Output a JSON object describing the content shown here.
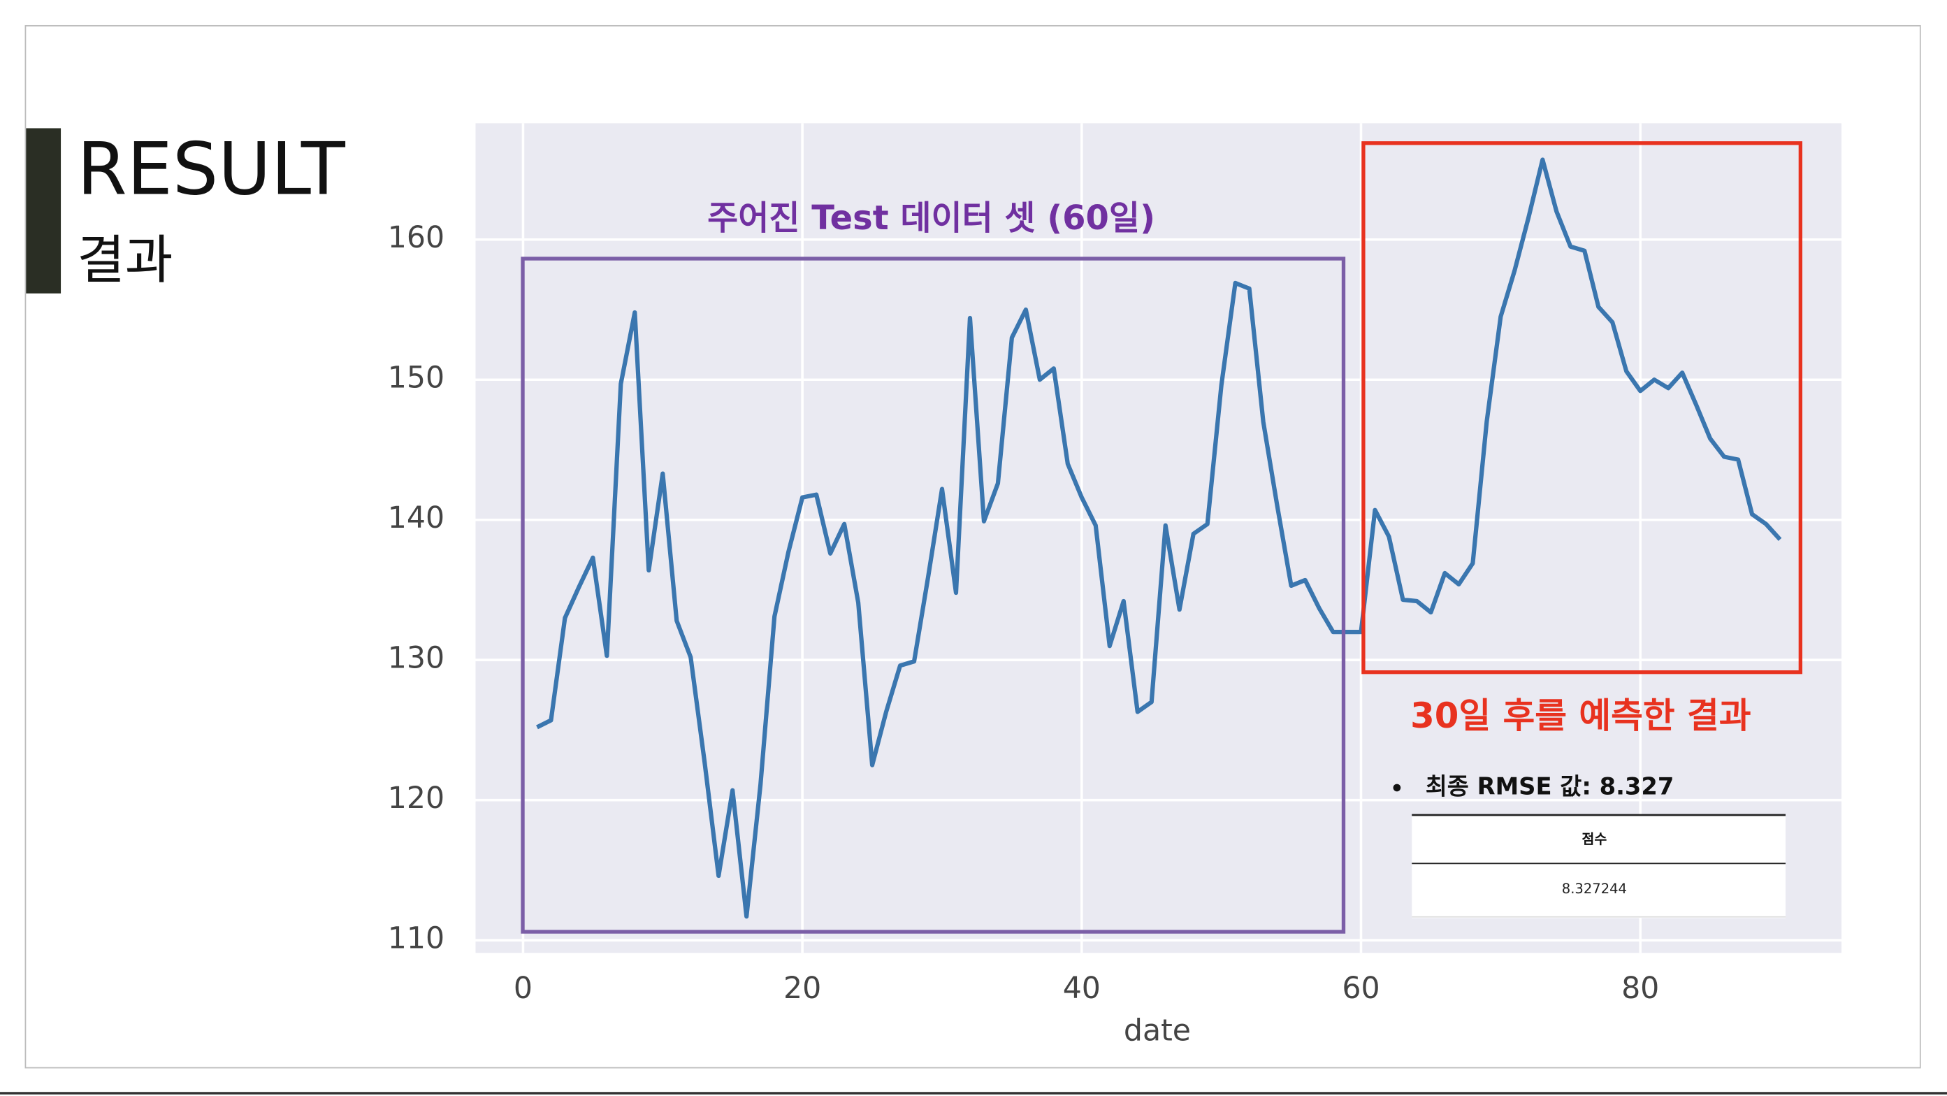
{
  "slide": {
    "title": "RESULT",
    "subtitle": "결과"
  },
  "chart_data": {
    "type": "line",
    "xlabel": "date",
    "x": [
      1,
      2,
      3,
      4,
      5,
      6,
      7,
      8,
      9,
      10,
      11,
      12,
      13,
      14,
      15,
      16,
      17,
      18,
      19,
      20,
      21,
      22,
      23,
      24,
      25,
      26,
      27,
      28,
      29,
      30,
      31,
      32,
      33,
      34,
      35,
      36,
      37,
      38,
      39,
      40,
      41,
      42,
      43,
      44,
      45,
      46,
      47,
      48,
      49,
      50,
      51,
      52,
      53,
      54,
      55,
      56,
      57,
      58,
      59,
      60,
      61,
      62,
      63,
      64,
      65,
      66,
      67,
      68,
      69,
      70,
      71,
      72,
      73,
      74,
      75,
      76,
      77,
      78,
      79,
      80,
      81,
      82,
      83,
      84,
      85,
      86,
      87,
      88,
      89,
      90
    ],
    "values": [
      125.2,
      125.7,
      133.0,
      135.2,
      137.3,
      130.3,
      149.7,
      154.8,
      136.4,
      143.3,
      132.8,
      130.2,
      122.7,
      114.6,
      120.7,
      111.7,
      121.1,
      133.1,
      137.7,
      141.6,
      141.8,
      137.6,
      139.7,
      134.1,
      122.5,
      126.3,
      129.6,
      129.9,
      135.9,
      142.2,
      134.8,
      154.4,
      139.9,
      142.6,
      153.0,
      155.0,
      150.0,
      150.8,
      144.0,
      141.6,
      139.6,
      131.0,
      134.2,
      126.3,
      127.0,
      139.6,
      133.6,
      139.0,
      139.7,
      149.6,
      156.9,
      156.5,
      147.0,
      141.0,
      135.3,
      135.7,
      133.7,
      132.0,
      132.0,
      132.0,
      140.7,
      138.8,
      134.3,
      134.2,
      133.4,
      136.2,
      135.4,
      136.9,
      147.0,
      154.5,
      157.8,
      161.6,
      165.7,
      162.0,
      159.5,
      159.2,
      155.2,
      154.1,
      150.6,
      149.2,
      150.0,
      149.4,
      150.5,
      148.2,
      145.8,
      144.5,
      144.3,
      140.4,
      139.7,
      138.6
    ],
    "color": "#3a76af",
    "xlim": [
      -3.4,
      94.4
    ],
    "ylim": [
      109.1,
      168.3
    ],
    "xticks": [
      0,
      20,
      40,
      60,
      80
    ],
    "yticks": [
      110,
      120,
      130,
      140,
      150,
      160
    ],
    "grid": true,
    "annotations": {
      "test_label": "주어진 Test 데이터 셋 (60일)",
      "forecast_label": "30일 후를 예측한 결과",
      "rmse_note": "최종 RMSE 값: 8.327",
      "table_header": "점수",
      "table_value": "8.327244"
    }
  }
}
